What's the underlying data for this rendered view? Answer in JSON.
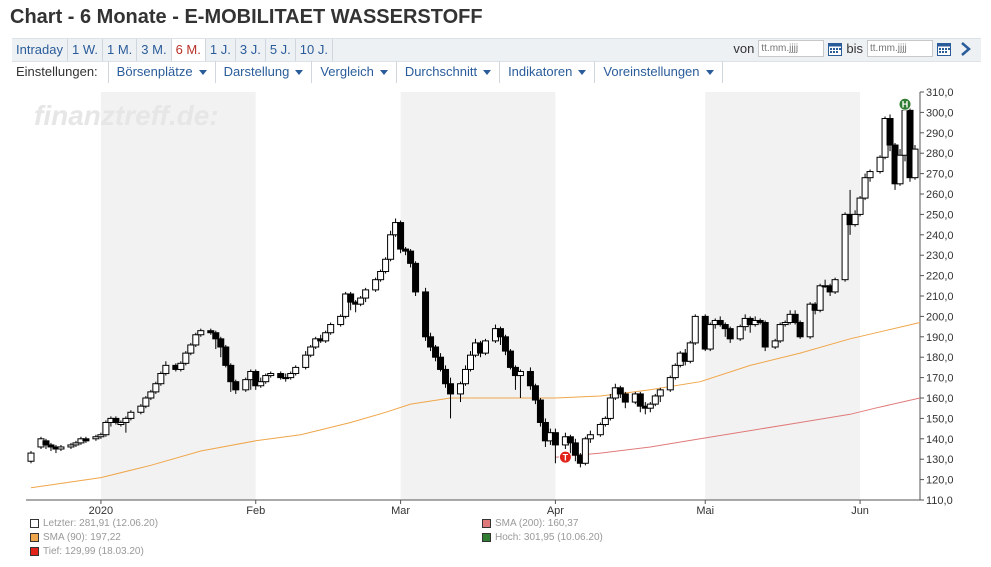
{
  "title": "Chart - 6 Monate - E-MOBILITAET WASSERSTOFF",
  "ranges": [
    "Intraday",
    "1 W.",
    "1 M.",
    "3 M.",
    "6 M.",
    "1 J.",
    "3 J.",
    "5 J.",
    "10 J."
  ],
  "active_range": "6 M.",
  "date_range": {
    "from_label": "von",
    "to_label": "bis",
    "placeholder": "tt.mm.jjjj"
  },
  "settings": {
    "label": "Einstellungen:",
    "menus": [
      "Börsenplätze",
      "Darstellung",
      "Vergleich",
      "Durchschnitt",
      "Indikatoren",
      "Voreinstellungen"
    ]
  },
  "watermark": "finanztreff.de:",
  "colors": {
    "sma90": "#f0a64a",
    "sma200": "#e07a7a",
    "tief": "#e2231a",
    "hoch": "#2e7d32",
    "band": "#f2f2f2"
  },
  "legend": [
    {
      "text": "Letzter: 281,91 (12.06.20)",
      "color": "#ffffff"
    },
    {
      "text": "SMA (200): 160,37",
      "color": "#e07a7a"
    },
    {
      "text": "SMA (90): 197,22",
      "color": "#f0a64a"
    },
    {
      "text": "Hoch: 301,95 (10.06.20)",
      "color": "#2e7d32"
    },
    {
      "text": "Tief: 129,99 (18.03.20)",
      "color": "#e2231a"
    }
  ],
  "chart_data": {
    "type": "candlestick",
    "ylim": [
      110,
      310
    ],
    "yticks": [
      110,
      120,
      130,
      140,
      150,
      160,
      170,
      180,
      190,
      200,
      210,
      220,
      230,
      240,
      250,
      260,
      270,
      280,
      290,
      300,
      310
    ],
    "xticks": [
      {
        "label": "2020",
        "day": 15
      },
      {
        "label": "Feb",
        "day": 46
      },
      {
        "label": "Mar",
        "day": 75
      },
      {
        "label": "Apr",
        "day": 106
      },
      {
        "label": "Mai",
        "day": 136
      },
      {
        "label": "Jun",
        "day": 167
      }
    ],
    "x_range_days": [
      0,
      179
    ],
    "shaded_months": [
      [
        15,
        46
      ],
      [
        75,
        106
      ],
      [
        136,
        167
      ]
    ],
    "candles": [
      [
        1,
        129,
        133,
        128,
        134
      ],
      [
        3,
        136,
        140,
        135,
        141
      ],
      [
        4,
        139,
        137,
        135,
        140
      ],
      [
        5,
        137,
        136,
        134,
        138
      ],
      [
        6,
        136,
        135,
        133,
        137
      ],
      [
        7,
        135,
        136,
        134,
        137
      ],
      [
        9,
        136,
        137,
        135,
        138
      ],
      [
        10,
        137,
        138,
        136,
        139
      ],
      [
        11,
        138,
        140,
        137,
        141
      ],
      [
        12,
        140,
        139,
        138,
        141
      ],
      [
        14,
        140,
        141,
        139,
        142
      ],
      [
        15,
        141,
        142,
        140,
        143
      ],
      [
        16,
        142,
        148,
        141,
        149
      ],
      [
        17,
        148,
        150,
        146,
        151
      ],
      [
        18,
        150,
        148,
        147,
        151
      ],
      [
        19,
        147,
        148,
        146,
        149
      ],
      [
        20,
        148,
        150,
        143,
        151
      ],
      [
        21,
        150,
        153,
        149,
        154
      ],
      [
        23,
        153,
        156,
        152,
        157
      ],
      [
        24,
        156,
        160,
        155,
        161
      ],
      [
        25,
        160,
        163,
        159,
        164
      ],
      [
        26,
        163,
        167,
        162,
        168
      ],
      [
        27,
        167,
        172,
        166,
        173
      ],
      [
        28,
        172,
        176,
        171,
        178
      ],
      [
        30,
        176,
        174,
        173,
        177
      ],
      [
        31,
        174,
        177,
        173,
        178
      ],
      [
        32,
        177,
        182,
        176,
        183
      ],
      [
        33,
        182,
        186,
        181,
        187
      ],
      [
        34,
        186,
        191,
        185,
        192
      ],
      [
        35,
        191,
        193,
        190,
        194
      ],
      [
        37,
        193,
        192,
        191,
        194
      ],
      [
        38,
        192,
        189,
        184,
        193
      ],
      [
        39,
        189,
        185,
        180,
        190
      ],
      [
        40,
        185,
        176,
        175,
        186
      ],
      [
        41,
        176,
        168,
        163,
        177
      ],
      [
        42,
        168,
        164,
        162,
        169
      ],
      [
        44,
        164,
        169,
        163,
        170
      ],
      [
        45,
        169,
        173,
        164,
        174
      ],
      [
        46,
        173,
        166,
        164,
        174
      ],
      [
        47,
        166,
        168,
        165,
        170
      ],
      [
        48,
        168,
        171,
        167,
        172
      ],
      [
        49,
        171,
        172,
        170,
        173
      ],
      [
        51,
        172,
        170,
        169,
        173
      ],
      [
        52,
        170,
        170,
        168,
        172
      ],
      [
        53,
        170,
        172,
        169,
        173
      ],
      [
        54,
        172,
        175,
        171,
        176
      ],
      [
        56,
        175,
        181,
        174,
        183
      ],
      [
        57,
        181,
        185,
        180,
        186
      ],
      [
        58,
        185,
        189,
        184,
        190
      ],
      [
        59,
        189,
        188,
        187,
        191
      ],
      [
        60,
        188,
        192,
        187,
        193
      ],
      [
        61,
        192,
        196,
        191,
        197
      ],
      [
        63,
        196,
        200,
        195,
        201
      ],
      [
        64,
        200,
        211,
        199,
        212
      ],
      [
        65,
        211,
        207,
        203,
        212
      ],
      [
        66,
        207,
        206,
        202,
        208
      ],
      [
        67,
        206,
        209,
        205,
        210
      ],
      [
        68,
        209,
        213,
        207,
        214
      ],
      [
        70,
        213,
        218,
        212,
        219
      ],
      [
        71,
        218,
        222,
        217,
        223
      ],
      [
        72,
        222,
        228,
        221,
        229
      ],
      [
        73,
        228,
        240,
        227,
        242
      ],
      [
        74,
        240,
        246,
        239,
        248
      ],
      [
        75,
        246,
        233,
        231,
        247
      ],
      [
        76,
        233,
        232,
        230,
        234
      ],
      [
        77,
        232,
        226,
        224,
        233
      ],
      [
        78,
        226,
        212,
        210,
        227
      ],
      [
        80,
        212,
        190,
        188,
        214
      ],
      [
        81,
        190,
        185,
        183,
        192
      ],
      [
        82,
        185,
        180,
        178,
        186
      ],
      [
        83,
        180,
        174,
        173,
        182
      ],
      [
        84,
        174,
        167,
        165,
        176
      ],
      [
        85,
        167,
        162,
        150,
        170
      ],
      [
        87,
        162,
        167,
        158,
        168
      ],
      [
        88,
        167,
        174,
        166,
        176
      ],
      [
        89,
        174,
        181,
        173,
        183
      ],
      [
        90,
        181,
        187,
        180,
        189
      ],
      [
        91,
        187,
        182,
        180,
        188
      ],
      [
        92,
        182,
        188,
        181,
        189
      ],
      [
        94,
        188,
        194,
        187,
        196
      ],
      [
        95,
        194,
        190,
        186,
        195
      ],
      [
        96,
        190,
        183,
        181,
        191
      ],
      [
        97,
        183,
        175,
        174,
        184
      ],
      [
        98,
        175,
        171,
        164,
        176
      ],
      [
        99,
        171,
        173,
        160,
        174
      ],
      [
        101,
        173,
        166,
        164,
        175
      ],
      [
        102,
        166,
        159,
        157,
        167
      ],
      [
        103,
        159,
        148,
        146,
        160
      ],
      [
        104,
        148,
        139,
        136,
        150
      ],
      [
        105,
        139,
        143,
        137,
        145
      ],
      [
        106,
        143,
        137,
        128,
        145
      ],
      [
        108,
        137,
        141,
        135,
        143
      ],
      [
        109,
        141,
        138,
        130,
        142
      ],
      [
        110,
        138,
        132,
        129,
        140
      ],
      [
        111,
        132,
        128,
        126,
        133
      ],
      [
        112,
        128,
        140,
        127,
        141
      ],
      [
        113,
        140,
        142,
        138,
        144
      ],
      [
        115,
        142,
        147,
        141,
        148
      ],
      [
        116,
        147,
        150,
        146,
        151
      ],
      [
        117,
        150,
        160,
        149,
        162
      ],
      [
        118,
        160,
        165,
        159,
        167
      ],
      [
        119,
        165,
        162,
        160,
        166
      ],
      [
        120,
        162,
        158,
        155,
        163
      ],
      [
        122,
        158,
        162,
        157,
        163
      ],
      [
        123,
        162,
        156,
        153,
        163
      ],
      [
        124,
        156,
        155,
        152,
        158
      ],
      [
        125,
        155,
        157,
        153,
        158
      ],
      [
        126,
        157,
        161,
        156,
        162
      ],
      [
        127,
        161,
        164,
        158,
        165
      ],
      [
        129,
        164,
        170,
        163,
        171
      ],
      [
        130,
        170,
        176,
        169,
        177
      ],
      [
        131,
        176,
        182,
        175,
        183
      ],
      [
        132,
        182,
        178,
        176,
        184
      ],
      [
        133,
        178,
        187,
        177,
        188
      ],
      [
        134,
        187,
        200,
        186,
        201
      ],
      [
        136,
        200,
        184,
        183,
        201
      ],
      [
        137,
        184,
        196,
        183,
        197
      ],
      [
        138,
        196,
        198,
        194,
        199
      ],
      [
        139,
        198,
        196,
        195,
        200
      ],
      [
        140,
        196,
        194,
        190,
        197
      ],
      [
        141,
        194,
        189,
        187,
        195
      ],
      [
        143,
        189,
        195,
        188,
        196
      ],
      [
        144,
        195,
        199,
        193,
        201
      ],
      [
        145,
        199,
        196,
        192,
        200
      ],
      [
        146,
        196,
        198,
        195,
        200
      ],
      [
        147,
        198,
        197,
        196,
        199
      ],
      [
        148,
        197,
        185,
        183,
        198
      ],
      [
        150,
        185,
        188,
        184,
        189
      ],
      [
        151,
        188,
        196,
        187,
        197
      ],
      [
        152,
        196,
        197,
        195,
        198
      ],
      [
        153,
        197,
        201,
        196,
        203
      ],
      [
        154,
        201,
        197,
        196,
        203
      ],
      [
        155,
        197,
        190,
        189,
        198
      ],
      [
        157,
        190,
        206,
        189,
        207
      ],
      [
        158,
        206,
        203,
        201,
        207
      ],
      [
        159,
        203,
        215,
        202,
        216
      ],
      [
        160,
        215,
        215,
        214,
        218
      ],
      [
        161,
        215,
        212,
        210,
        216
      ],
      [
        162,
        212,
        218,
        211,
        219
      ],
      [
        164,
        218,
        250,
        217,
        251
      ],
      [
        165,
        250,
        245,
        240,
        262
      ],
      [
        166,
        245,
        250,
        244,
        252
      ],
      [
        167,
        250,
        258,
        249,
        259
      ],
      [
        168,
        258,
        268,
        257,
        270
      ],
      [
        169,
        268,
        271,
        266,
        272
      ],
      [
        171,
        271,
        278,
        270,
        279
      ],
      [
        172,
        278,
        297,
        277,
        298
      ],
      [
        173,
        297,
        284,
        281,
        299
      ],
      [
        174,
        284,
        265,
        262,
        285
      ],
      [
        175,
        265,
        279,
        264,
        282
      ],
      [
        176,
        279,
        301,
        276,
        302
      ],
      [
        177,
        301,
        268,
        266,
        302
      ],
      [
        178,
        268,
        282,
        267,
        284
      ]
    ],
    "sma90": [
      [
        1,
        116
      ],
      [
        15,
        121
      ],
      [
        25,
        127
      ],
      [
        35,
        134
      ],
      [
        46,
        139
      ],
      [
        55,
        142
      ],
      [
        65,
        148
      ],
      [
        72,
        153
      ],
      [
        77,
        157
      ],
      [
        85,
        160
      ],
      [
        95,
        160
      ],
      [
        106,
        160
      ],
      [
        115,
        161
      ],
      [
        125,
        164
      ],
      [
        135,
        168
      ],
      [
        145,
        176
      ],
      [
        155,
        182
      ],
      [
        165,
        189
      ],
      [
        172,
        193
      ],
      [
        179,
        197
      ]
    ],
    "sma200": [
      [
        106,
        131
      ],
      [
        115,
        133
      ],
      [
        125,
        136
      ],
      [
        135,
        140
      ],
      [
        145,
        144
      ],
      [
        155,
        148
      ],
      [
        165,
        152
      ],
      [
        170,
        155
      ],
      [
        179,
        160
      ]
    ],
    "markers": [
      {
        "label": "T",
        "day": 108,
        "value": 131,
        "kind": "tief"
      },
      {
        "label": "H",
        "day": 176,
        "value": 304,
        "kind": "hoch"
      }
    ]
  }
}
